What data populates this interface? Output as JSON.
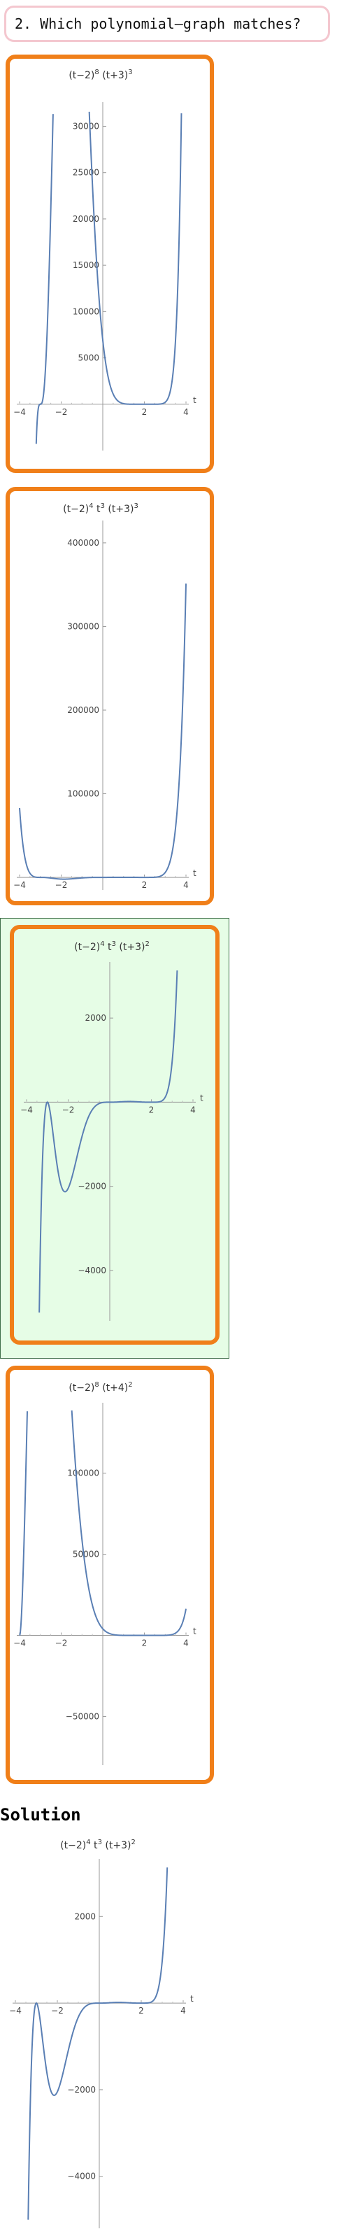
{
  "question": {
    "text": "2. Which polynomial–graph matches?"
  },
  "solution": {
    "title": "Solution"
  },
  "options": [
    {
      "id": "option-1",
      "selected": false,
      "chart_data": {
        "type": "line",
        "title": "(t−2)^8 (t+3)^3",
        "title_parts": {
          "a": "(t−2)",
          "a_exp": "8",
          "b": "(t+3)",
          "b_exp": "3"
        },
        "xlim": [
          -4,
          4
        ],
        "ylim": [
          -5000,
          32000
        ],
        "xticks": [
          "−4",
          "−2",
          "2",
          "4"
        ],
        "yticks": [
          "5000",
          "10000",
          "15000",
          "20000",
          "25000",
          "30000"
        ],
        "ytick_values": [
          5000,
          10000,
          15000,
          20000,
          25000,
          30000
        ],
        "xlabel": "t"
      }
    },
    {
      "id": "option-2",
      "selected": false,
      "chart_data": {
        "type": "line",
        "title": "(t−2)^4 t^3 (t+3)^3",
        "title_parts": {
          "a": "(t−2)",
          "a_exp": "4",
          "b": "t",
          "b_exp": "3",
          "c": "(t+3)",
          "c_exp": "3"
        },
        "xlim": [
          -4,
          4
        ],
        "ylim": [
          -15000,
          420000
        ],
        "xticks": [
          "−4",
          "−2",
          "2",
          "4"
        ],
        "yticks": [
          "100000",
          "200000",
          "300000",
          "400000"
        ],
        "ytick_values": [
          100000,
          200000,
          300000,
          400000
        ],
        "xlabel": "t"
      }
    },
    {
      "id": "option-3",
      "selected": true,
      "chart_data": {
        "type": "line",
        "title": "(t−2)^4 t^3 (t+3)^2",
        "title_parts": {
          "a": "(t−2)",
          "a_exp": "4",
          "b": "t",
          "b_exp": "3",
          "c": "(t+3)",
          "c_exp": "2"
        },
        "xlim": [
          -4,
          4
        ],
        "ylim": [
          -5200,
          3200
        ],
        "xticks": [
          "−4",
          "−2",
          "2",
          "4"
        ],
        "yticks": [
          "−4000",
          "−2000",
          "2000"
        ],
        "ytick_values": [
          -4000,
          -2000,
          2000
        ],
        "xlabel": "t"
      }
    },
    {
      "id": "option-4",
      "selected": false,
      "chart_data": {
        "type": "line",
        "title": "(t−2)^8 (t+4)^2",
        "title_parts": {
          "a": "(t−2)",
          "a_exp": "8",
          "b": "(t+4)",
          "b_exp": "2"
        },
        "xlim": [
          -4,
          4
        ],
        "ylim": [
          -80000,
          140000
        ],
        "xticks": [
          "−4",
          "−2",
          "2",
          "4"
        ],
        "yticks": [
          "−50000",
          "50000",
          "100000"
        ],
        "ytick_values": [
          -50000,
          50000,
          100000
        ],
        "xlabel": "t"
      }
    }
  ],
  "solution_chart": {
    "chart_data": {
      "type": "line",
      "title": "(t−2)^4 t^3 (t+3)^2",
      "title_parts": {
        "a": "(t−2)",
        "a_exp": "4",
        "b": "t",
        "b_exp": "3",
        "c": "(t+3)",
        "c_exp": "2"
      },
      "xlim": [
        -4,
        4
      ],
      "ylim": [
        -5200,
        3200
      ],
      "xticks": [
        "−4",
        "−2",
        "2",
        "4"
      ],
      "yticks": [
        "−4000",
        "−2000",
        "2000"
      ],
      "ytick_values": [
        -4000,
        -2000,
        2000
      ],
      "xlabel": "t"
    }
  }
}
